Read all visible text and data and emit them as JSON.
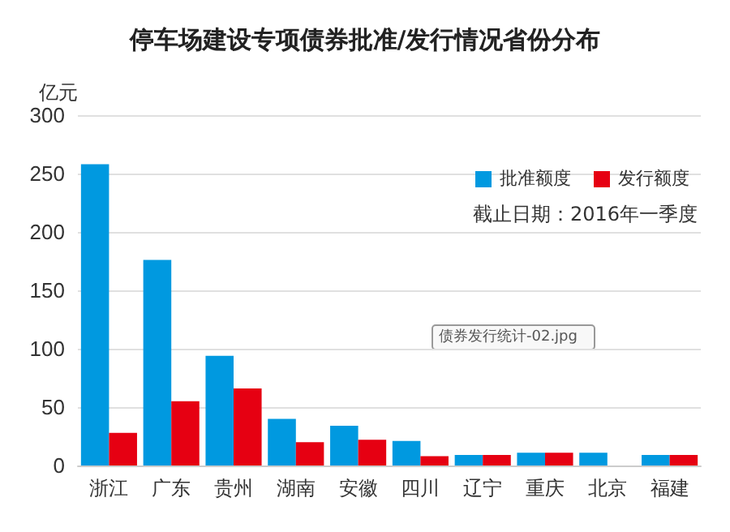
{
  "chart_data": {
    "type": "bar",
    "title": "停车场建设专项债券批准/发行情况省份分布",
    "ylabel": "亿元",
    "categories": [
      "浙江",
      "广东",
      "贵州",
      "湖南",
      "安徽",
      "四川",
      "辽宁",
      "重庆",
      "北京",
      "福建"
    ],
    "series": [
      {
        "name": "批准额度",
        "color": "#0099e0",
        "values": [
          258,
          176,
          94,
          40,
          34,
          21,
          9,
          11,
          11,
          9
        ]
      },
      {
        "name": "发行额度",
        "color": "#e60012",
        "values": [
          28,
          55,
          66,
          20,
          22,
          8,
          9,
          11,
          null,
          9
        ]
      }
    ],
    "ylim": [
      0,
      300
    ],
    "yticks": [
      0,
      50,
      100,
      150,
      200,
      250,
      300
    ],
    "grid": "y",
    "legend": "top right",
    "annotations": [
      "截止日期：2016年一季度",
      "债券发行统计-02.jpg"
    ]
  }
}
